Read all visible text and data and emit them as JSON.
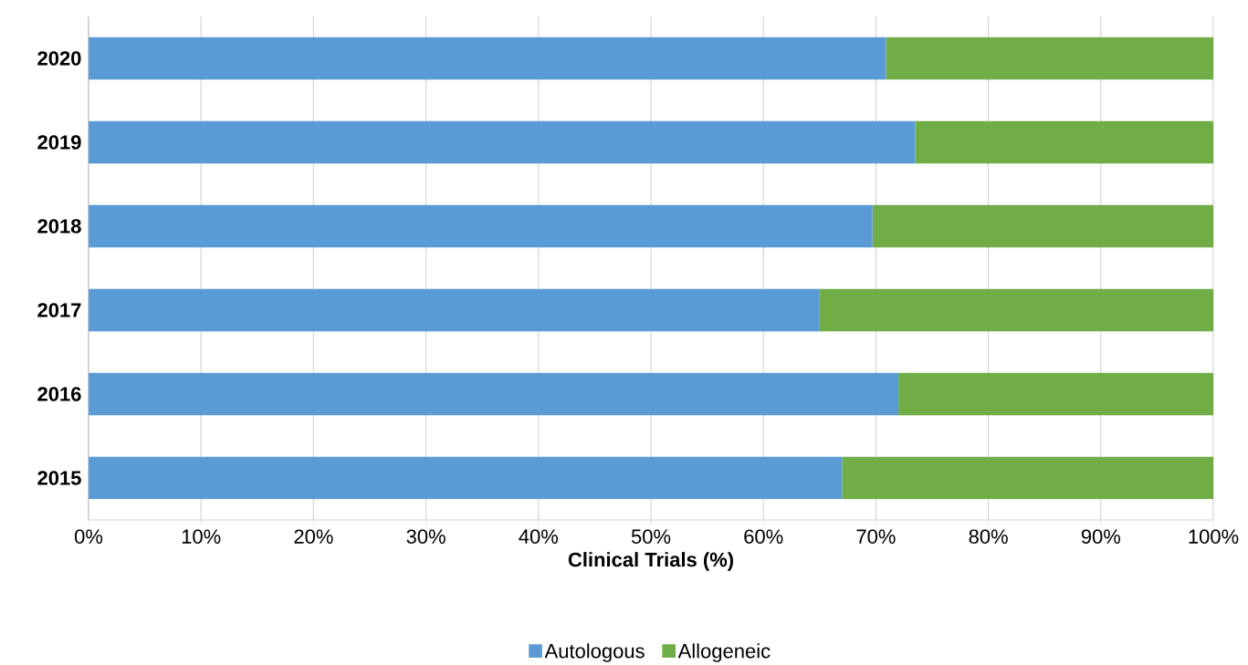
{
  "chart_data": {
    "type": "bar",
    "orientation": "horizontal",
    "stacked": true,
    "xlabel": "Clinical Trials (%)",
    "categories": [
      "2020",
      "2019",
      "2018",
      "2017",
      "2016",
      "2015"
    ],
    "series": [
      {
        "name": "Autologous",
        "color": "#5b9bd5",
        "values": [
          70.9,
          73.5,
          69.7,
          65.0,
          72.0,
          67.0
        ]
      },
      {
        "name": "Allogeneic",
        "color": "#70ad47",
        "values": [
          29.1,
          26.5,
          30.3,
          35.0,
          28.0,
          33.0
        ]
      }
    ],
    "xlim": [
      0,
      100
    ],
    "xticks": [
      {
        "value": 0,
        "label": "0%"
      },
      {
        "value": 10,
        "label": "10%"
      },
      {
        "value": 20,
        "label": "20%"
      },
      {
        "value": 30,
        "label": "30%"
      },
      {
        "value": 40,
        "label": "40%"
      },
      {
        "value": 50,
        "label": "50%"
      },
      {
        "value": 60,
        "label": "60%"
      },
      {
        "value": 70,
        "label": "70%"
      },
      {
        "value": 80,
        "label": "80%"
      },
      {
        "value": 90,
        "label": "90%"
      },
      {
        "value": 100,
        "label": "100%"
      }
    ],
    "grid": "x",
    "legend": "bottom"
  }
}
